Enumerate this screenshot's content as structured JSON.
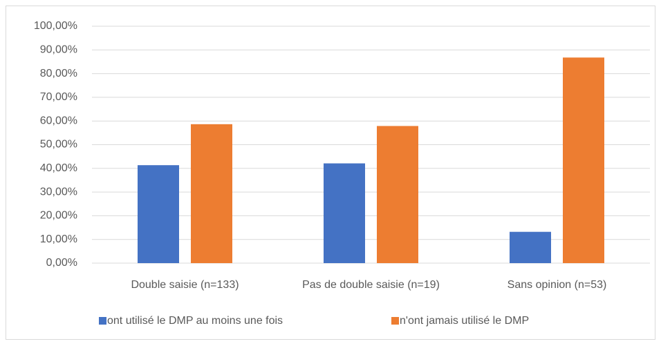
{
  "chart_data": {
    "type": "bar",
    "categories": [
      "Double saisie (n=133)",
      "Pas de double saisie (n=19)",
      "Sans opinion (n=53)"
    ],
    "series": [
      {
        "name": "ont utilisé le DMP au moins une fois",
        "color": "#4472c4",
        "values": [
          41.35,
          42.11,
          13.21
        ]
      },
      {
        "name": "n'ont jamais utilisé le DMP",
        "color": "#ed7d31",
        "values": [
          58.65,
          57.89,
          86.79
        ]
      }
    ],
    "ylim": [
      0,
      100
    ],
    "yticks": [
      {
        "value": 0,
        "label": "0,00%"
      },
      {
        "value": 10,
        "label": "10,00%"
      },
      {
        "value": 20,
        "label": "20,00%"
      },
      {
        "value": 30,
        "label": "30,00%"
      },
      {
        "value": 40,
        "label": "40,00%"
      },
      {
        "value": 50,
        "label": "50,00%"
      },
      {
        "value": 60,
        "label": "60,00%"
      },
      {
        "value": 70,
        "label": "70,00%"
      },
      {
        "value": 80,
        "label": "80,00%"
      },
      {
        "value": 90,
        "label": "90,00%"
      },
      {
        "value": 100,
        "label": "100,00%"
      }
    ],
    "grid": true,
    "legend": "bottom"
  }
}
